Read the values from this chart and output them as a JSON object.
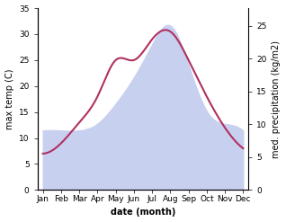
{
  "months": [
    "Jan",
    "Feb",
    "Mar",
    "Apr",
    "May",
    "Jun",
    "Jul",
    "Aug",
    "Sep",
    "Oct",
    "Nov",
    "Dec"
  ],
  "temp_max": [
    7,
    9,
    13,
    18,
    25,
    25,
    29,
    30.5,
    25,
    18,
    12,
    8
  ],
  "precipitation": [
    9,
    9,
    9,
    10,
    13,
    17,
    22,
    25,
    19,
    12,
    10,
    9
  ],
  "temp_ylim": [
    0,
    35
  ],
  "precip_ylim": [
    0,
    27.7
  ],
  "temp_color": "#b03060",
  "precip_fill_color": "#c8d0f0",
  "xlabel": "date (month)",
  "ylabel_left": "max temp (C)",
  "ylabel_right": "med. precipitation (kg/m2)",
  "bg_color": "#ffffff",
  "left_ticks": [
    0,
    5,
    10,
    15,
    20,
    25,
    30,
    35
  ],
  "right_ticks": [
    0,
    5,
    10,
    15,
    20,
    25
  ],
  "label_fontsize": 7,
  "tick_fontsize": 6.5
}
